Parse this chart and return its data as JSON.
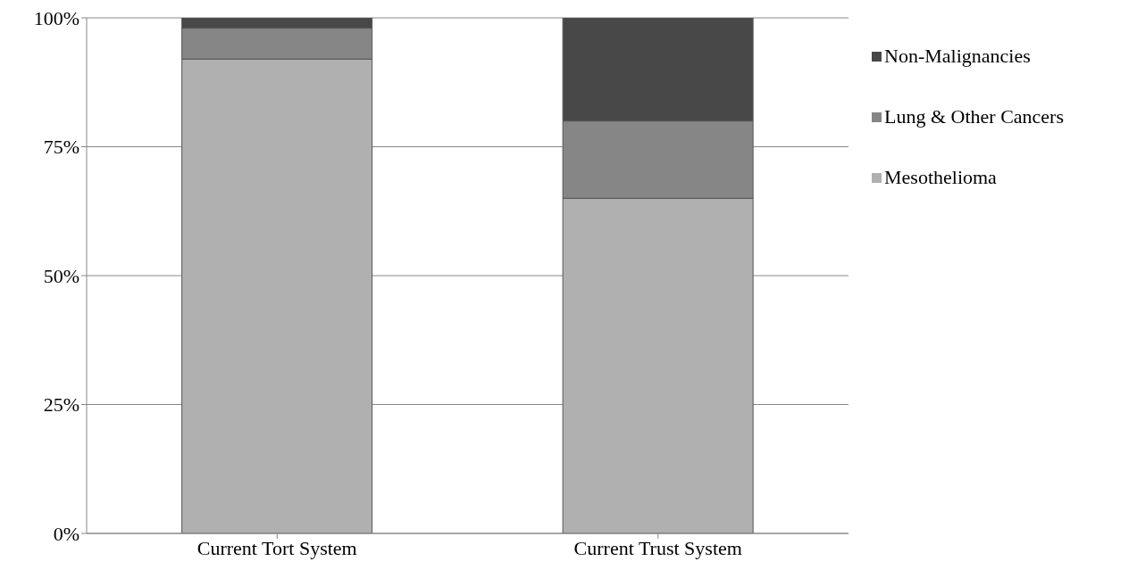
{
  "chart_data": {
    "type": "bar",
    "stacked": true,
    "categories": [
      "Current Tort System",
      "Current Trust System"
    ],
    "series": [
      {
        "name": "Mesothelioma",
        "color": "#b0b0b0",
        "values": [
          92,
          65
        ]
      },
      {
        "name": "Lung & Other Cancers",
        "color": "#868686",
        "values": [
          6,
          15
        ]
      },
      {
        "name": "Non-Malignancies",
        "color": "#484848",
        "values": [
          2,
          20
        ]
      }
    ],
    "ylim": [
      0,
      100
    ],
    "yticks": [
      {
        "value": 0,
        "label": "0%"
      },
      {
        "value": 25,
        "label": "25%"
      },
      {
        "value": 50,
        "label": "50%"
      },
      {
        "value": 75,
        "label": "75%"
      },
      {
        "value": 100,
        "label": "100%"
      }
    ],
    "grid": "y",
    "legend": "right"
  }
}
